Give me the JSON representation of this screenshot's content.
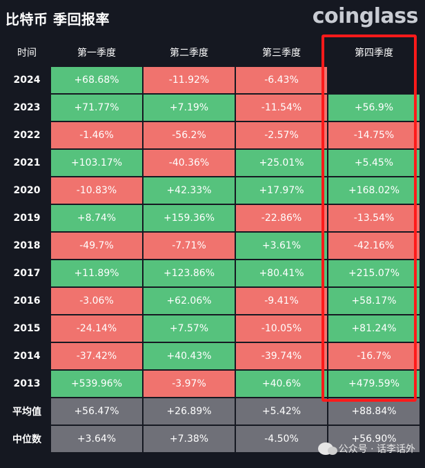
{
  "header": {
    "title": "比特币 季回报率",
    "brand": "coinglass"
  },
  "table": {
    "headers": [
      "时间",
      "第一季度",
      "第二季度",
      "第三季度",
      "第四季度"
    ]
  },
  "chart_data": {
    "type": "table",
    "title": "比特币 季回报率",
    "columns": [
      "时间",
      "第一季度",
      "第二季度",
      "第三季度",
      "第四季度"
    ],
    "rows": [
      {
        "year": "2024",
        "q": [
          "+68.68%",
          "-11.92%",
          "-6.43%",
          ""
        ]
      },
      {
        "year": "2023",
        "q": [
          "+71.77%",
          "+7.19%",
          "-11.54%",
          "+56.9%"
        ]
      },
      {
        "year": "2022",
        "q": [
          "-1.46%",
          "-56.2%",
          "-2.57%",
          "-14.75%"
        ]
      },
      {
        "year": "2021",
        "q": [
          "+103.17%",
          "-40.36%",
          "+25.01%",
          "+5.45%"
        ]
      },
      {
        "year": "2020",
        "q": [
          "-10.83%",
          "+42.33%",
          "+17.97%",
          "+168.02%"
        ]
      },
      {
        "year": "2019",
        "q": [
          "+8.74%",
          "+159.36%",
          "-22.86%",
          "-13.54%"
        ]
      },
      {
        "year": "2018",
        "q": [
          "-49.7%",
          "-7.71%",
          "+3.61%",
          "-42.16%"
        ]
      },
      {
        "year": "2017",
        "q": [
          "+11.89%",
          "+123.86%",
          "+80.41%",
          "+215.07%"
        ]
      },
      {
        "year": "2016",
        "q": [
          "-3.06%",
          "+62.06%",
          "-9.41%",
          "+58.17%"
        ]
      },
      {
        "year": "2015",
        "q": [
          "-24.14%",
          "+7.57%",
          "-10.05%",
          "+81.24%"
        ]
      },
      {
        "year": "2014",
        "q": [
          "-37.42%",
          "+40.43%",
          "-39.74%",
          "-16.7%"
        ]
      },
      {
        "year": "2013",
        "q": [
          "+539.96%",
          "-3.97%",
          "+40.6%",
          "+479.59%"
        ]
      }
    ],
    "stats": [
      {
        "label": "平均值",
        "q": [
          "+56.47%",
          "+26.89%",
          "+5.42%",
          "+88.84%"
        ]
      },
      {
        "label": "中位数",
        "q": [
          "+3.64%",
          "+7.38%",
          "-4.50%",
          "+56.90%"
        ]
      }
    ],
    "colors": {
      "positive": "#56c27d",
      "negative": "#f0736e",
      "stat": "#6f7078",
      "highlight": "#ff1a1a",
      "background": "#151821"
    }
  },
  "watermark": {
    "text": "公众号 · 话李话外",
    "icon": "wechat-icon"
  }
}
